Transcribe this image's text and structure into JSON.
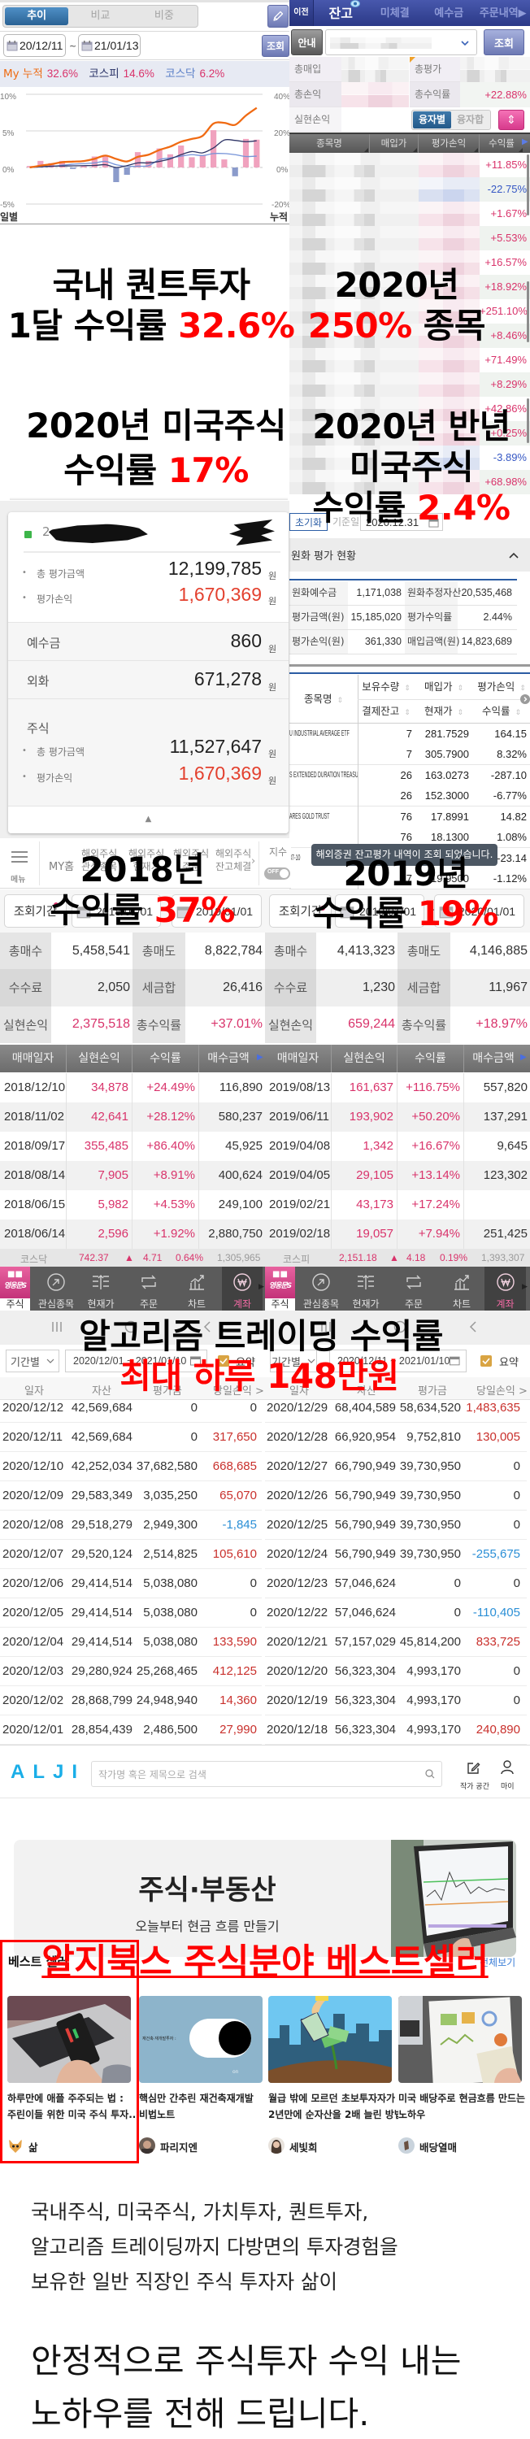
{
  "colors": {
    "overlay_red": "#ff0000",
    "up_pink": "#d9336b",
    "down_blue": "#3557c4",
    "bar_up": "#f0a2be",
    "bar_down": "#8b9bcb",
    "alji_brand": "#1aaee8"
  },
  "overlays": {
    "o1": {
      "line1": "국내 퀀트투자",
      "line2a": "1달 수익률 ",
      "line2b": "32.6%"
    },
    "o2": {
      "line1": "2020년",
      "line2a": "250%",
      "line2b": " 종목"
    },
    "o3": {
      "line1": "2020년 미국주식",
      "line2a": "수익률 ",
      "line2b": "17%"
    },
    "o4": {
      "line1": "2020년 반년",
      "line2": "미국주식",
      "line3a": "수익률 ",
      "line3b": "2.4%"
    },
    "o5": {
      "line1": "2018년",
      "line2a": "수익률 ",
      "line2b": "37%"
    },
    "o6": {
      "line1": "2019년",
      "line2a": "수익률 ",
      "line2b": "19%"
    },
    "o7": {
      "line1": "알고리즘 트레이딩 수익률"
    },
    "o8": {
      "line1": "최대 하루 148만원"
    },
    "o9": {
      "line1": "알지북스 주식분야 베스트셀러"
    }
  },
  "quant_chart": {
    "tabs": [
      {
        "label": "추이"
      },
      {
        "label": "비교"
      },
      {
        "label": "비중"
      }
    ],
    "date_from": "20/12/11",
    "date_sep": "~",
    "date_to": "21/01/13",
    "query_label": "조회",
    "legend": [
      {
        "label": "My 누적",
        "value": "32.6%"
      },
      {
        "label": "코스피",
        "value": "14.6%"
      },
      {
        "label": "코스닥",
        "value": "6.2%"
      }
    ],
    "left_ticks": [
      "10%",
      "5%",
      "0%",
      "-5%"
    ],
    "right_ticks": [
      "40%",
      "20%",
      "0%",
      "-20%"
    ],
    "left_title": "일별",
    "right_title": "누적"
  },
  "chart_data": {
    "type": "bar",
    "title": "My 누적 32.6%  코스피 14.6%  코스닥 6.2%",
    "period": "20/12/11 ~ 21/01/13",
    "xlabel": "",
    "ylabel": "일별",
    "ylabel_right": "누적",
    "ylim": [
      -5,
      10
    ],
    "ylim_right": [
      -20,
      40
    ],
    "left_ticks": [
      10,
      5,
      0,
      -5
    ],
    "right_ticks": [
      40,
      20,
      0,
      -20
    ],
    "grid": true,
    "legend_position": "top",
    "series": [
      {
        "name": "My 일별",
        "type": "bar",
        "axis": "left",
        "color_up": "#f0a2be",
        "color_down": "#8b9bcb",
        "values": [
          0.2,
          0.9,
          0.6,
          0.9,
          -0.2,
          0.2,
          1.5,
          1.5,
          -2.0,
          -1.0,
          2.1,
          0.9,
          2.6,
          1.8,
          3.0,
          1.4,
          1.7,
          5.1,
          1.1,
          -1.2,
          3.9,
          3.8
        ]
      },
      {
        "name": "My 누적",
        "type": "line",
        "axis": "right",
        "color": "#f06a12",
        "values": [
          0,
          1.0,
          1.8,
          2.9,
          3.2,
          3.5,
          4.7,
          6.5,
          4.7,
          3.3,
          5.8,
          7.0,
          9.6,
          11.4,
          14.1,
          15.6,
          17.3,
          24.0,
          24.4,
          23.3,
          28.4,
          32.6
        ]
      },
      {
        "name": "코스피",
        "type": "line",
        "axis": "right",
        "color": "#2e3566",
        "values": [
          0,
          0.4,
          0.7,
          0.8,
          0.9,
          1.0,
          1.1,
          1.5,
          0,
          1.0,
          2.5,
          2.5,
          3.3,
          4.7,
          7.0,
          8.7,
          8.0,
          10.7,
          15.0,
          14.8,
          14.1,
          14.6
        ]
      },
      {
        "name": "코스닥",
        "type": "line",
        "axis": "right",
        "color": "#7593d8",
        "values": [
          0,
          0.3,
          0.6,
          1.2,
          1.8,
          2.1,
          2.5,
          3.3,
          1.5,
          0.6,
          0.7,
          1.0,
          4.3,
          5.2,
          6.2,
          7.0,
          6.5,
          7.6,
          7.6,
          7.0,
          6.0,
          6.2
        ]
      }
    ]
  },
  "balance": {
    "prev_label": "이전",
    "tabs": [
      {
        "label": "잔고"
      },
      {
        "label": "미체결"
      },
      {
        "label": "예수금"
      },
      {
        "label": "주문내역▶"
      }
    ],
    "guide_label": "안내",
    "query_label": "조회",
    "summary": {
      "total_buy_label": "총매입",
      "total_eval_label": "총평가",
      "total_pnl_label": "총손익",
      "total_return_label": "총수익률",
      "total_return": "+22.88%",
      "realized_label": "실현손익"
    },
    "loan_tabs": [
      {
        "label": "융자별"
      },
      {
        "label": "융자합"
      }
    ],
    "sort_toggle": "⇕",
    "columns": [
      "종목명",
      "매입가",
      "평가손익",
      "수익률"
    ],
    "rows": [
      {
        "pct": "+11.85%",
        "dir": "up"
      },
      {
        "pct": "-22.75%",
        "dir": "down"
      },
      {
        "pct": "+1.67%",
        "dir": "up"
      },
      {
        "pct": "+5.53%",
        "dir": "up"
      },
      {
        "pct": "+16.57%",
        "dir": "up"
      },
      {
        "pct": "+18.92%",
        "dir": "up"
      },
      {
        "pct": "+251.10%",
        "dir": "up"
      },
      {
        "pct": "+8.46%",
        "dir": "up"
      },
      {
        "pct": "+71.49%",
        "dir": "up"
      },
      {
        "pct": "+8.29%",
        "dir": "up"
      },
      {
        "pct": "+42.86%",
        "dir": "up"
      },
      {
        "pct": "+0.25%",
        "dir": "up"
      },
      {
        "pct": "-3.89%",
        "dir": "down"
      },
      {
        "pct": "+68.98%",
        "dir": "up"
      }
    ]
  },
  "us_balance": {
    "reset_label": "초기화",
    "base_date_label": "기준일",
    "base_date": "2020.12.31",
    "section_title": "원화 평가 현황",
    "summary_rows": [
      {
        "l1": "원화예수금",
        "v1": "1,171,038",
        "l2": "원화추정자산",
        "v2": "20,535,468"
      },
      {
        "l1": "평가금액(원)",
        "v1": "15,185,020",
        "l2": "평가수익률",
        "v2": "2.44%",
        "v2dir": "up"
      },
      {
        "l1": "평가손익(원)",
        "v1": "361,330",
        "v1dir": "up",
        "l2": "매입금액(원)",
        "v2": "14,823,689"
      }
    ],
    "header": {
      "name": "종목명",
      "qty": "보유수량",
      "settle": "결제잔고",
      "buy": "매입가",
      "cur": "현재가",
      "pnl": "평가손익",
      "ret": "수익률"
    },
    "stocks": [
      {
        "name": "U INDUSTRIAL AVERAGE ETF",
        "qty1": "7",
        "price1": "281.7529",
        "pnl1": "164.15",
        "dir1": "up",
        "qty2": "7",
        "price2": "305.7900",
        "pnl2": "8.32%",
        "dir2": "up"
      },
      {
        "name": "S EXTENDED DURATION TREASURY ETF",
        "qty1": "26",
        "price1": "163.0273",
        "pnl1": "-287.10",
        "dir1": "down",
        "qty2": "26",
        "price2": "152.3000",
        "pnl2": "-6.77%",
        "dir2": "down"
      },
      {
        "name": "ARES GOLD TRUST",
        "qty1": "76",
        "price1": "17.8991",
        "pnl1": "14.82",
        "dir1": "up",
        "qty2": "76",
        "price2": "18.1300",
        "pnl2": "1.08%",
        "dir2": "up"
      },
      {
        "name": "37-10",
        "qty1": "",
        "price1": "",
        "pnl1": "-23.14",
        "dir1": "down",
        "qty2": "17",
        "price2": "19.9500",
        "pnl2": "-1.12%",
        "dir2": "down"
      }
    ],
    "toast": "해외증권 잔고평가 내역이 조회 되었습니다."
  },
  "kr_account": {
    "masked_prefix": "2",
    "total_eval_label": "총 평가금액",
    "total_eval": "12,199,785",
    "eval_pnl_label": "평가손익",
    "eval_pnl": "1,670,369",
    "unit": "원",
    "deposit_label": "예수금",
    "deposit": "860",
    "fx_label": "외화",
    "fx": "671,278",
    "stock_label": "주식",
    "stock_total_eval": "11,527,647",
    "stock_eval_pnl": "1,670,369"
  },
  "overseas_nav": {
    "menu_label": "메뉴",
    "my_home": "MY홈",
    "items": [
      {
        "l1": "해외주식",
        "l2": "관심종목"
      },
      {
        "l1": "해외주식",
        "l2": "현재가"
      },
      {
        "l1": "해외주식",
        "l2": "주문"
      },
      {
        "l1": "해외주식",
        "l2": "잔고체결"
      }
    ],
    "index_label": "지수",
    "toggle_label": "OFF"
  },
  "realized": [
    {
      "query_label": "조회기간",
      "from": "2018/01/01",
      "sep": "~",
      "to": "2019/01/01",
      "grid": [
        {
          "l1": "총매수",
          "v1": "5,458,541",
          "l2": "총매도",
          "v2": "8,822,784"
        },
        {
          "l1": "수수료",
          "v1": "2,050",
          "l2": "세금합",
          "v2": "26,416"
        },
        {
          "l1": "실현손익",
          "v1": "2,375,518",
          "l2": "총수익률",
          "v2": "+37.01%"
        }
      ],
      "columns": [
        "매매일자",
        "실현손익",
        "수익률",
        "매수금액"
      ],
      "rows": [
        {
          "date": "2018/12/10",
          "pnl": "34,878",
          "ret": "+24.49%",
          "buy": "116,890"
        },
        {
          "date": "2018/11/02",
          "pnl": "42,641",
          "ret": "+28.12%",
          "buy": "580,237"
        },
        {
          "date": "2018/09/17",
          "pnl": "355,485",
          "ret": "+86.40%",
          "buy": "45,925"
        },
        {
          "date": "2018/08/14",
          "pnl": "7,905",
          "ret": "+8.91%",
          "buy": "400,624"
        },
        {
          "date": "2018/06/15",
          "pnl": "5,982",
          "ret": "+4.53%",
          "buy": "249,100"
        },
        {
          "date": "2018/06/14",
          "pnl": "2,596",
          "ret": "+1.92%",
          "buy": "2,880,750"
        }
      ],
      "index": {
        "name": "코스닥",
        "value": "742.37",
        "arrow": "▲",
        "change": "4.71",
        "pct": "0.64%",
        "volume": "1,305,965"
      }
    },
    {
      "query_label": "조회기간",
      "from": "2019/01/01",
      "sep": "~",
      "to": "2020/01/01",
      "grid": [
        {
          "l1": "총매수",
          "v1": "4,413,323",
          "l2": "총매도",
          "v2": "4,146,885"
        },
        {
          "l1": "수수료",
          "v1": "1,230",
          "l2": "세금합",
          "v2": "11,967"
        },
        {
          "l1": "실현손익",
          "v1": "659,244",
          "l2": "총수익률",
          "v2": "+18.97%"
        }
      ],
      "columns": [
        "매매일자",
        "실현손익",
        "수익률",
        "매수금액"
      ],
      "rows": [
        {
          "date": "2019/08/13",
          "pnl": "161,637",
          "ret": "+116.75%",
          "buy": "557,820"
        },
        {
          "date": "2019/06/11",
          "pnl": "193,902",
          "ret": "+50.20%",
          "buy": "137,291"
        },
        {
          "date": "2019/04/08",
          "pnl": "1,342",
          "ret": "+16.67%",
          "buy": "9,645"
        },
        {
          "date": "2019/04/05",
          "pnl": "29,105",
          "ret": "+13.14%",
          "buy": "123,302"
        },
        {
          "date": "2019/02/21",
          "pnl": "43,173",
          "ret": "+17.24%",
          "buy": ""
        },
        {
          "date": "2019/02/18",
          "pnl": "19,057",
          "ret": "+7.94%",
          "buy": "251,425"
        }
      ],
      "index": {
        "name": "코스피",
        "value": "2,151.18",
        "arrow": "▲",
        "change": "4.18",
        "pct": "0.19%",
        "volume": "1,393,307"
      }
    }
  ],
  "bottom_nav": {
    "app_label": "영웅문S",
    "items": [
      {
        "label": "주식"
      },
      {
        "label": "관심종목"
      },
      {
        "label": "현재가"
      },
      {
        "label": "주문"
      },
      {
        "label": "차트"
      },
      {
        "label": "계좌"
      }
    ]
  },
  "algo": [
    {
      "period_label": "기간별",
      "range": "2020/12/01 ~ 2021/01/10",
      "summary_label": "요약",
      "columns": [
        "일자",
        "자산",
        "평가금",
        "당일손익 >"
      ],
      "rows": [
        {
          "date": "2020/12/12",
          "asset": "42,569,684",
          "eval": "0",
          "pnl": "0",
          "dir": "flat"
        },
        {
          "date": "2020/12/11",
          "asset": "42,569,684",
          "eval": "0",
          "pnl": "317,650",
          "dir": "up"
        },
        {
          "date": "2020/12/10",
          "asset": "42,252,034",
          "eval": "37,682,580",
          "pnl": "668,685",
          "dir": "up"
        },
        {
          "date": "2020/12/09",
          "asset": "29,583,349",
          "eval": "3,035,250",
          "pnl": "65,070",
          "dir": "up"
        },
        {
          "date": "2020/12/08",
          "asset": "29,518,279",
          "eval": "2,949,300",
          "pnl": "-1,845",
          "dir": "down"
        },
        {
          "date": "2020/12/07",
          "asset": "29,520,124",
          "eval": "2,514,825",
          "pnl": "105,610",
          "dir": "up"
        },
        {
          "date": "2020/12/06",
          "asset": "29,414,514",
          "eval": "5,038,080",
          "pnl": "0",
          "dir": "flat"
        },
        {
          "date": "2020/12/05",
          "asset": "29,414,514",
          "eval": "5,038,080",
          "pnl": "0",
          "dir": "flat"
        },
        {
          "date": "2020/12/04",
          "asset": "29,414,514",
          "eval": "5,038,080",
          "pnl": "133,590",
          "dir": "up"
        },
        {
          "date": "2020/12/03",
          "asset": "29,280,924",
          "eval": "25,268,465",
          "pnl": "412,125",
          "dir": "up"
        },
        {
          "date": "2020/12/02",
          "asset": "28,868,799",
          "eval": "24,948,940",
          "pnl": "14,360",
          "dir": "up"
        },
        {
          "date": "2020/12/01",
          "asset": "28,854,439",
          "eval": "2,486,500",
          "pnl": "27,990",
          "dir": "up"
        }
      ]
    },
    {
      "period_label": "기간별",
      "range": "2020/12/11 ~ 2021/01/10",
      "summary_label": "요약",
      "columns": [
        "일자",
        "자산",
        "평가금",
        "당일손익 >"
      ],
      "rows": [
        {
          "date": "2020/12/29",
          "asset": "68,404,589",
          "eval": "58,634,520",
          "pnl": "1,483,635",
          "dir": "up"
        },
        {
          "date": "2020/12/28",
          "asset": "66,920,954",
          "eval": "9,752,810",
          "pnl": "130,005",
          "dir": "up"
        },
        {
          "date": "2020/12/27",
          "asset": "66,790,949",
          "eval": "39,730,950",
          "pnl": "0",
          "dir": "flat"
        },
        {
          "date": "2020/12/26",
          "asset": "56,790,949",
          "eval": "39,730,950",
          "pnl": "0",
          "dir": "flat"
        },
        {
          "date": "2020/12/25",
          "asset": "56,790,949",
          "eval": "39,730,950",
          "pnl": "0",
          "dir": "flat"
        },
        {
          "date": "2020/12/24",
          "asset": "56,790,949",
          "eval": "39,730,950",
          "pnl": "-255,675",
          "dir": "down"
        },
        {
          "date": "2020/12/23",
          "asset": "57,046,624",
          "eval": "0",
          "pnl": "0",
          "dir": "flat"
        },
        {
          "date": "2020/12/22",
          "asset": "57,046,624",
          "eval": "0",
          "pnl": "-110,405",
          "dir": "down"
        },
        {
          "date": "2020/12/21",
          "asset": "57,157,029",
          "eval": "45,814,200",
          "pnl": "833,725",
          "dir": "up"
        },
        {
          "date": "2020/12/20",
          "asset": "56,323,304",
          "eval": "4,993,170",
          "pnl": "0",
          "dir": "flat"
        },
        {
          "date": "2020/12/19",
          "asset": "56,323,304",
          "eval": "4,993,170",
          "pnl": "0",
          "dir": "flat"
        },
        {
          "date": "2020/12/18",
          "asset": "56,323,304",
          "eval": "4,993,170",
          "pnl": "240,890",
          "dir": "up"
        }
      ]
    }
  ],
  "alji": {
    "logo": "ALJI",
    "search_placeholder": "작가명 혹은 제목으로 검색",
    "writer_space_label": "작가 공간",
    "my_label": "마이",
    "banner_title": "주식·부동산",
    "banner_subtitle": "오늘부터 현금 흐름 만들기",
    "bestseller_title": "베스트 셀러",
    "view_all": "전체보기",
    "books": [
      {
        "title1": "하루만에 애플 주주되는 법 :",
        "title2": "주린이들 위한 미국 주식 투자...",
        "author": "삶"
      },
      {
        "title1": "핵심만 간추린 재건축재개발",
        "title2": "비법노트",
        "author": "파리지엔",
        "cover_text": "재건축·재개발투자 :",
        "cover_toggle": "on"
      },
      {
        "title1": "월급 밖에 모르던 초보투자자가",
        "title2": "2년만에 순자산을 2배 늘린 방법",
        "author": "세빛희"
      },
      {
        "title1": "미국 배당주로 현금흐름 만드는",
        "title2": "노하우",
        "author": "배당열매"
      }
    ]
  },
  "intro": {
    "lines": [
      "국내주식, 미국주식, 가치투자, 퀀트투자,",
      "알고리즘 트레이딩까지 다방면의 투자경험을",
      "보유한 일반 직장인 주식 투자자 삶이"
    ],
    "headline": [
      "안정적으로 주식투자 수익 내는",
      "노하우를 전해 드립니다."
    ]
  }
}
